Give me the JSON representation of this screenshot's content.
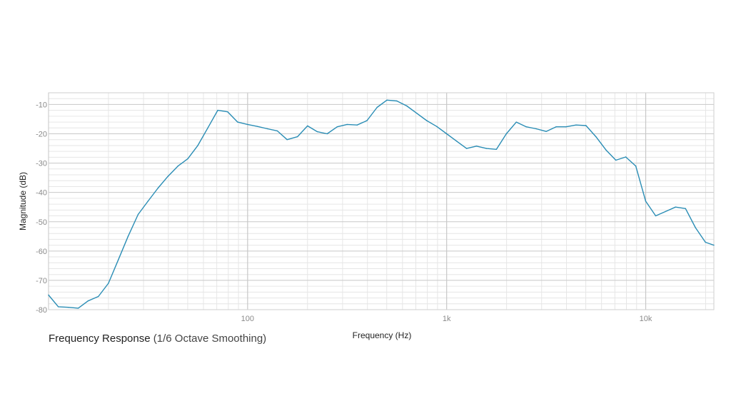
{
  "caption": {
    "title": "Frequency Response",
    "subtitle": "(1/6 Octave Smoothing)"
  },
  "colors": {
    "line": "#2a8db5",
    "major_grid": "#c8c8c8",
    "minor_grid": "#e6e6e6",
    "frame": "#cfcfcf",
    "tick_text": "#8a8a8a"
  },
  "chart_data": {
    "type": "line",
    "title": "Frequency Response (1/6 Octave Smoothing)",
    "xlabel": "Frequency (Hz)",
    "ylabel": "Magnitude (dB)",
    "x_scale": "log",
    "xlim": [
      10,
      22000
    ],
    "ylim": [
      -80,
      -6
    ],
    "grid": true,
    "x_ticks": [
      {
        "value": 100,
        "label": "100"
      },
      {
        "value": 1000,
        "label": "1k"
      },
      {
        "value": 10000,
        "label": "10k"
      }
    ],
    "y_ticks": [
      {
        "value": -10,
        "label": "-10"
      },
      {
        "value": -20,
        "label": "-20"
      },
      {
        "value": -30,
        "label": "-30"
      },
      {
        "value": -40,
        "label": "-40"
      },
      {
        "value": -50,
        "label": "-50"
      },
      {
        "value": -60,
        "label": "-60"
      },
      {
        "value": -70,
        "label": "-70"
      },
      {
        "value": -80,
        "label": "-80"
      }
    ],
    "series": [
      {
        "x": [
          10,
          11.2,
          12.6,
          14.1,
          15.8,
          17.8,
          20,
          22.4,
          25.1,
          28.2,
          31.6,
          35.5,
          39.8,
          44.7,
          50.1,
          56.2,
          63.1,
          70.8,
          79.4,
          89.1,
          100,
          112,
          126,
          141,
          158,
          178,
          200,
          224,
          251,
          282,
          316,
          355,
          398,
          447,
          501,
          562,
          631,
          708,
          794,
          891,
          1000,
          1122,
          1259,
          1413,
          1585,
          1778,
          1995,
          2239,
          2512,
          2818,
          3162,
          3548,
          3981,
          4467,
          5012,
          5623,
          6310,
          7079,
          7943,
          8913,
          10000,
          11220,
          12589,
          14125,
          15849,
          17783,
          19953,
          22000
        ],
        "y": [
          -75,
          -79,
          -79.2,
          -79.5,
          -77,
          -75.5,
          -71,
          -63,
          -55,
          -47.5,
          -43,
          -38.5,
          -34.5,
          -31,
          -28.5,
          -24,
          -18,
          -12,
          -12.5,
          -16,
          -16.8,
          -17.5,
          -18.3,
          -19,
          -22,
          -21,
          -17.3,
          -19.3,
          -20,
          -17.6,
          -16.8,
          -17,
          -15.5,
          -11,
          -8.5,
          -8.8,
          -10.5,
          -13,
          -15.5,
          -17.5,
          -20,
          -22.5,
          -25,
          -24.2,
          -25,
          -25.3,
          -20,
          -16,
          -17.6,
          -18.3,
          -19.2,
          -17.6,
          -17.6,
          -17,
          -17.2,
          -21,
          -25.5,
          -29,
          -27.9,
          -31,
          -43,
          -48,
          -46.5,
          -45,
          -45.5,
          -52,
          -57,
          -58
        ]
      }
    ]
  }
}
